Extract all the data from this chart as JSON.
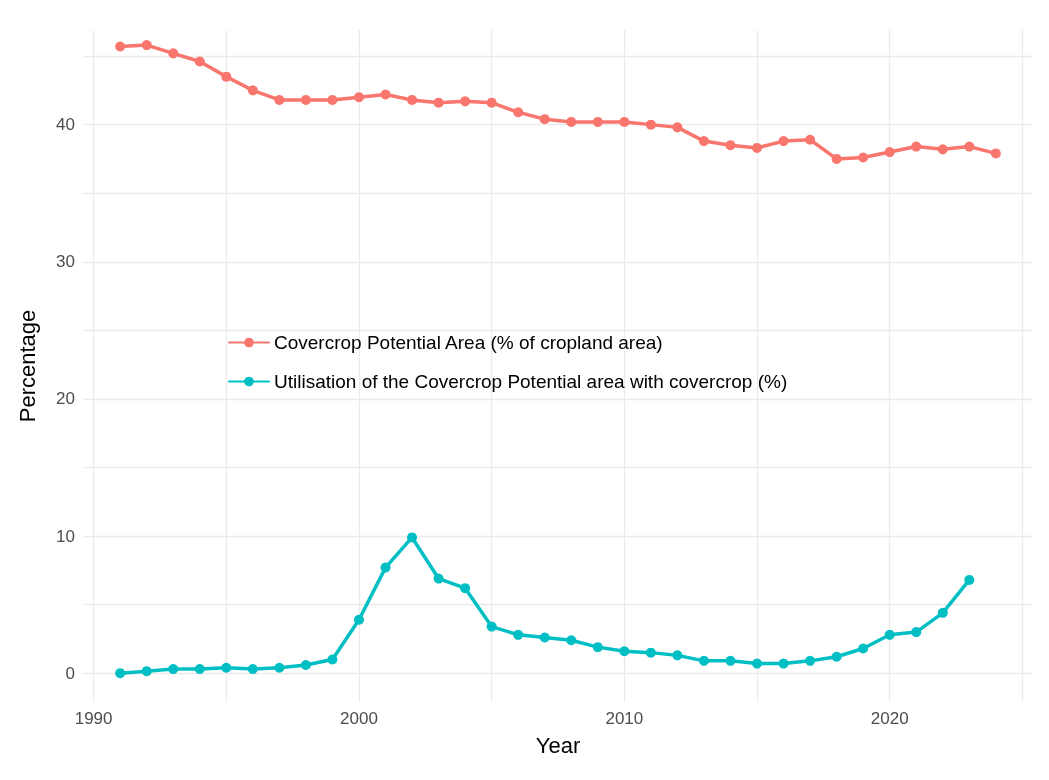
{
  "chart_data": {
    "type": "line",
    "xlabel": "Year",
    "ylabel": "Percentage",
    "xlim": [
      1989.6,
      2025.4
    ],
    "ylim": [
      -2.1,
      46.9
    ],
    "xticks": [
      1990,
      {
        "value": 1995,
        "label": null
      },
      2000,
      {
        "value": 2005,
        "label": null
      },
      2010,
      {
        "value": 2015,
        "label": null
      },
      2020,
      {
        "value": 2025,
        "label": null
      }
    ],
    "yticks": [
      0,
      {
        "value": 5,
        "label": null
      },
      10,
      {
        "value": 15,
        "label": null
      },
      20,
      {
        "value": 25,
        "label": null
      },
      30,
      {
        "value": 35,
        "label": null
      },
      40,
      {
        "value": 45,
        "label": null
      }
    ],
    "grid": true,
    "legend": "left",
    "marker": "circle",
    "line_style": "solid",
    "series": [
      {
        "name": "Covercrop Potential Area (% of cropland area)",
        "color": "#f8766d",
        "x": [
          1991,
          1992,
          1993,
          1994,
          1995,
          1996,
          1997,
          1998,
          1999,
          2000,
          2001,
          2002,
          2003,
          2004,
          2005,
          2006,
          2007,
          2008,
          2009,
          2010,
          2011,
          2012,
          2013,
          2014,
          2015,
          2016,
          2017,
          2018,
          2019,
          2020,
          2021,
          2022,
          2023,
          2024
        ],
        "values": [
          45.7,
          45.8,
          45.2,
          44.6,
          43.5,
          42.5,
          41.8,
          41.8,
          41.8,
          42.0,
          42.2,
          41.8,
          41.6,
          41.7,
          41.6,
          40.9,
          40.4,
          40.2,
          40.2,
          40.2,
          40.0,
          39.8,
          38.8,
          38.5,
          38.3,
          38.8,
          38.9,
          37.5,
          37.6,
          38.0,
          38.4,
          38.2,
          38.4,
          37.9
        ]
      },
      {
        "name": "Utilisation of the Covercrop Potential area with covercrop (%)",
        "color": "#00bfc4",
        "x": [
          1991,
          1992,
          1993,
          1994,
          1995,
          1996,
          1997,
          1998,
          1999,
          2000,
          2001,
          2002,
          2003,
          2004,
          2005,
          2006,
          2007,
          2008,
          2009,
          2010,
          2011,
          2012,
          2013,
          2014,
          2015,
          2016,
          2017,
          2018,
          2019,
          2020,
          2021,
          2022,
          2023
        ],
        "values": [
          0.0,
          0.15,
          0.3,
          0.3,
          0.4,
          0.3,
          0.4,
          0.6,
          1.0,
          3.9,
          7.7,
          9.9,
          6.9,
          6.2,
          3.4,
          2.8,
          2.6,
          2.4,
          1.9,
          1.6,
          1.5,
          1.3,
          0.9,
          0.9,
          0.7,
          0.7,
          0.9,
          1.2,
          1.8,
          2.8,
          3.0,
          4.4,
          6.8
        ]
      }
    ]
  }
}
